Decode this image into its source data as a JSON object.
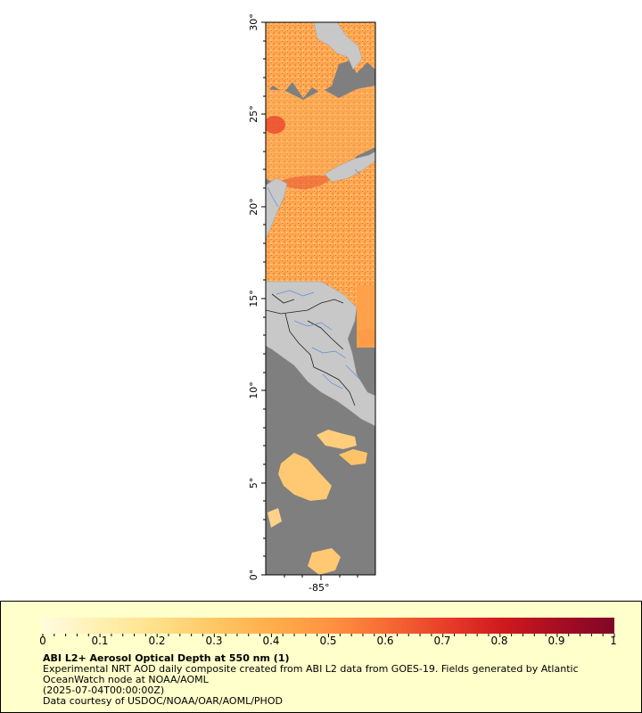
{
  "map": {
    "lat_ticks": [
      "0°",
      "5°",
      "10°",
      "15°",
      "20°",
      "25°",
      "30°"
    ],
    "lon_ticks": [
      "-85°"
    ],
    "colors": {
      "no_data": "#7f7f7f",
      "land": "#c8c8c8",
      "border": "#222222",
      "river": "#5b8fd6"
    }
  },
  "legend": {
    "colorbar_labels": [
      "0",
      "0.1",
      "0.2",
      "0.3",
      "0.4",
      "0.5",
      "0.6",
      "0.7",
      "0.8",
      "0.9",
      "1"
    ],
    "colorbar_stops": [
      "#fffbe0",
      "#fff0b0",
      "#ffe08a",
      "#ffc764",
      "#ffae4a",
      "#ff9440",
      "#f76b34",
      "#e8402a",
      "#d21a1f",
      "#a80d22",
      "#7f0626"
    ],
    "title": "ABI L2+ Aerosol Optical Depth at 550 nm (1)",
    "line1": "Experimental NRT AOD daily composite created from ABI L2 data from GOES-19. Fields generated by Atlantic OceanWatch node at NOAA/AOML",
    "line2": "(2025-07-04T00:00:00Z)",
    "line3": "Data courtesy of USDOC/NOAA/OAR/AOML/PHOD"
  }
}
